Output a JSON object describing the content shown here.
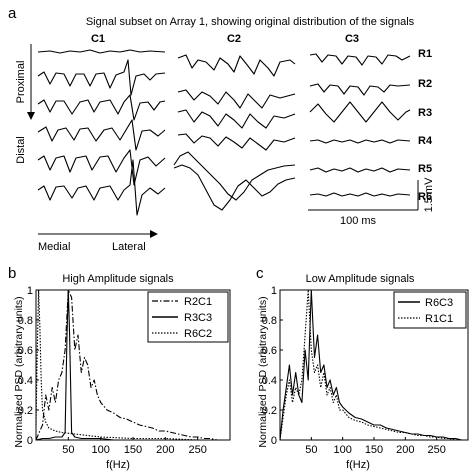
{
  "panel_a": {
    "letter": "a",
    "title": "Signal subset on Array 1, showing original distribution of the signals",
    "columns": [
      "C1",
      "C2",
      "C3"
    ],
    "rows": [
      "R1",
      "R2",
      "R3",
      "R4",
      "R5",
      "R6"
    ],
    "proximal_label": "Proximal",
    "distal_label": "Distal",
    "medial_label": "Medial",
    "lateral_label": "Lateral",
    "time_scale_label": "100 ms",
    "voltage_scale_label": "1.5 mV"
  },
  "chart_data": [
    {
      "type": "line",
      "letter": "b",
      "title": "High Amplitude signals",
      "xlabel": "f(Hz)",
      "ylabel": "Normalized PSD (arbitrary units)",
      "xlim": [
        0,
        300
      ],
      "ylim": [
        0,
        1
      ],
      "xticks": [
        50,
        100,
        150,
        200,
        250
      ],
      "yticks": [
        0,
        0.2,
        0.4,
        0.6,
        0.8,
        1
      ],
      "legend_position": "top-right",
      "series": [
        {
          "name": "R2C1",
          "style": "dash-dot",
          "x": [
            0,
            5,
            10,
            15,
            20,
            25,
            30,
            35,
            40,
            45,
            50,
            55,
            60,
            65,
            70,
            75,
            80,
            85,
            90,
            95,
            100,
            110,
            120,
            130,
            140,
            150,
            160,
            170,
            180,
            190,
            200,
            210,
            220,
            230,
            240,
            250,
            260,
            270,
            280,
            290,
            300
          ],
          "y": [
            0,
            0.05,
            0.1,
            0.3,
            0.2,
            0.35,
            0.25,
            0.4,
            0.45,
            0.6,
            1.0,
            0.95,
            0.6,
            0.7,
            0.45,
            0.55,
            0.5,
            0.35,
            0.4,
            0.3,
            0.25,
            0.2,
            0.18,
            0.15,
            0.14,
            0.12,
            0.1,
            0.09,
            0.08,
            0.06,
            0.06,
            0.05,
            0.04,
            0.03,
            0.02,
            0.02,
            0.01,
            0.01,
            0.0,
            0.0,
            0.0
          ]
        },
        {
          "name": "R3C3",
          "style": "solid",
          "x": [
            0,
            10,
            20,
            30,
            40,
            45,
            48,
            50,
            52,
            55,
            60,
            70,
            80,
            100,
            120,
            150,
            200,
            250,
            300
          ],
          "y": [
            0,
            0.01,
            0.01,
            0.02,
            0.02,
            0.05,
            0.7,
            1.0,
            0.7,
            0.05,
            0.02,
            0.01,
            0.01,
            0.01,
            0.0,
            0.0,
            0.0,
            0.0,
            0.0
          ]
        },
        {
          "name": "R6C2",
          "style": "dotted",
          "x": [
            0,
            2,
            4,
            6,
            8,
            10,
            15,
            20,
            30,
            40,
            60,
            80,
            100,
            150,
            200,
            250,
            300
          ],
          "y": [
            0.1,
            0.6,
            1.0,
            0.75,
            0.4,
            0.2,
            0.12,
            0.08,
            0.06,
            0.05,
            0.04,
            0.03,
            0.02,
            0.01,
            0.01,
            0.0,
            0.0
          ]
        }
      ]
    },
    {
      "type": "line",
      "letter": "c",
      "title": "Low Amplitude signals",
      "xlabel": "f(Hz)",
      "ylabel": "Normalized PSD (arbitrary units)",
      "xlim": [
        0,
        300
      ],
      "ylim": [
        0,
        1
      ],
      "xticks": [
        50,
        100,
        150,
        200,
        250
      ],
      "yticks": [
        0,
        0.2,
        0.4,
        0.6,
        0.8,
        1
      ],
      "legend_position": "top-right",
      "series": [
        {
          "name": "R6C3",
          "style": "solid",
          "x": [
            0,
            5,
            10,
            15,
            20,
            25,
            30,
            35,
            40,
            45,
            50,
            55,
            60,
            65,
            70,
            75,
            80,
            85,
            90,
            95,
            100,
            110,
            120,
            130,
            140,
            150,
            160,
            170,
            180,
            190,
            200,
            210,
            220,
            230,
            240,
            250,
            260,
            270,
            280,
            290,
            300
          ],
          "y": [
            0,
            0.2,
            0.35,
            0.5,
            0.3,
            0.45,
            0.3,
            0.25,
            0.6,
            0.4,
            1.0,
            0.55,
            0.7,
            0.45,
            0.5,
            0.35,
            0.4,
            0.3,
            0.35,
            0.25,
            0.22,
            0.18,
            0.15,
            0.14,
            0.12,
            0.1,
            0.1,
            0.08,
            0.07,
            0.06,
            0.05,
            0.04,
            0.04,
            0.03,
            0.03,
            0.02,
            0.02,
            0.01,
            0.01,
            0.0,
            0.0
          ]
        },
        {
          "name": "R1C1",
          "style": "dotted",
          "x": [
            0,
            5,
            10,
            15,
            20,
            25,
            30,
            35,
            40,
            45,
            50,
            55,
            60,
            65,
            70,
            75,
            80,
            85,
            90,
            95,
            100,
            110,
            120,
            130,
            140,
            150,
            160,
            170,
            180,
            190,
            200,
            210,
            220,
            230,
            240,
            250,
            260,
            270,
            280,
            290,
            300
          ],
          "y": [
            0,
            0.15,
            0.3,
            0.4,
            0.25,
            0.35,
            0.3,
            0.4,
            0.7,
            1.0,
            0.6,
            0.45,
            0.5,
            0.35,
            0.45,
            0.3,
            0.35,
            0.25,
            0.3,
            0.2,
            0.2,
            0.15,
            0.13,
            0.12,
            0.1,
            0.09,
            0.08,
            0.07,
            0.06,
            0.05,
            0.05,
            0.04,
            0.03,
            0.03,
            0.02,
            0.02,
            0.01,
            0.01,
            0.0,
            0.0,
            0.0
          ]
        }
      ]
    }
  ]
}
